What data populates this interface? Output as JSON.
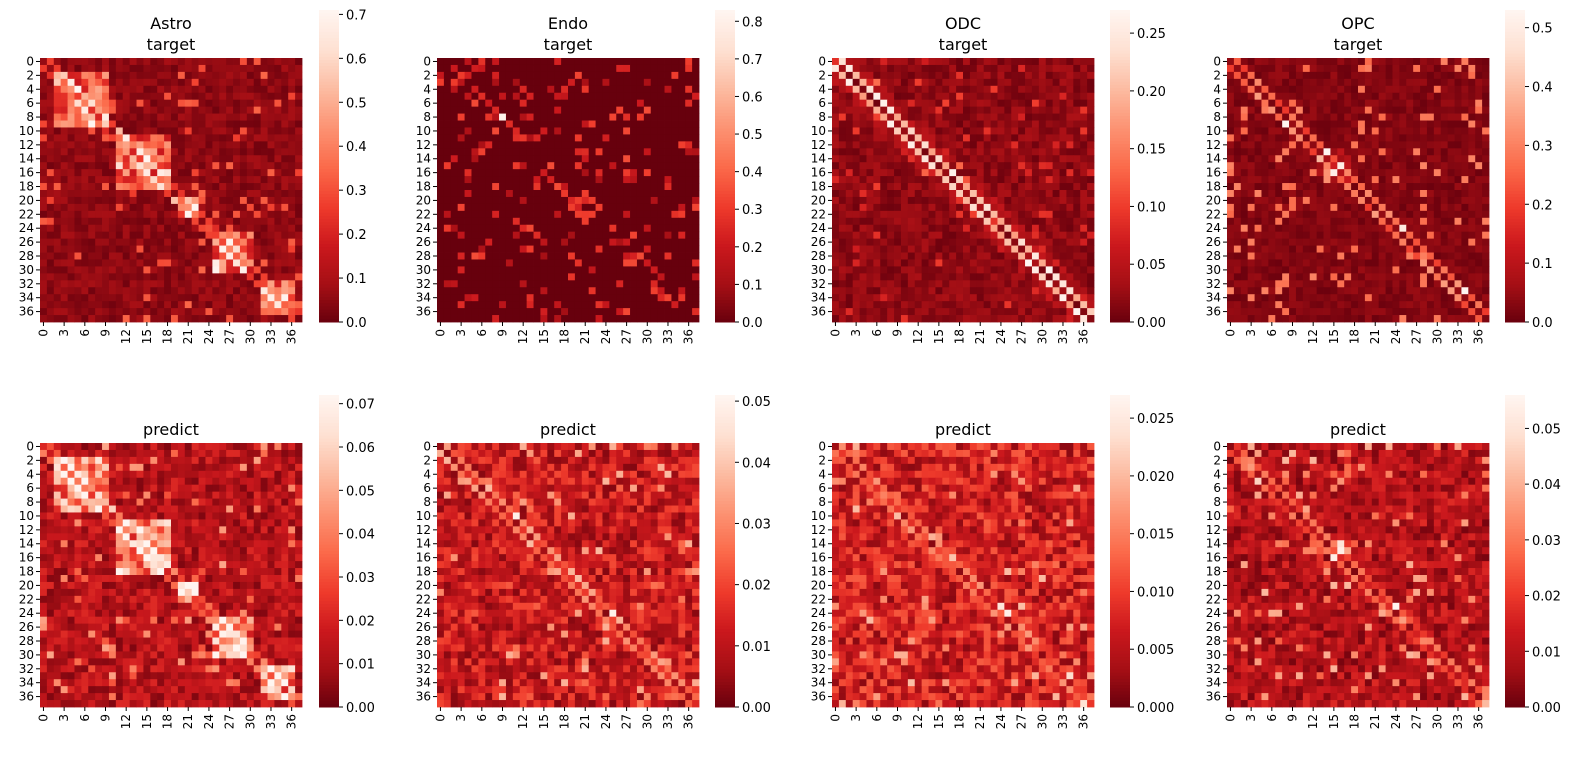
{
  "chart_data": [
    {
      "type": "heatmap",
      "title": [
        "Astro",
        "target"
      ],
      "matrix_size": 38,
      "tick_labels_y": [
        "0",
        "2",
        "4",
        "6",
        "8",
        "10",
        "12",
        "14",
        "16",
        "18",
        "20",
        "22",
        "24",
        "26",
        "28",
        "30",
        "32",
        "34",
        "36"
      ],
      "tick_labels_x": [
        "0",
        "3",
        "6",
        "9",
        "12",
        "15",
        "18",
        "21",
        "24",
        "27",
        "30",
        "33",
        "36"
      ],
      "colorbar": {
        "min": 0.0,
        "max": 0.71,
        "ticks": [
          "0.0",
          "0.1",
          "0.2",
          "0.3",
          "0.4",
          "0.5",
          "0.6",
          "0.7"
        ]
      },
      "cmap": "Reds_r",
      "diag_peak": 0.42,
      "background": 0.05,
      "pattern": "block-diagonal blocks 2-9, 11-18, 20-22, 25-30, 32-36"
    },
    {
      "type": "heatmap",
      "title": [
        "Endo",
        "target"
      ],
      "matrix_size": 38,
      "tick_labels_y": [
        "0",
        "2",
        "4",
        "6",
        "8",
        "10",
        "12",
        "14",
        "16",
        "18",
        "20",
        "22",
        "24",
        "26",
        "28",
        "30",
        "32",
        "34",
        "36"
      ],
      "tick_labels_x": [
        "0",
        "3",
        "6",
        "9",
        "12",
        "15",
        "18",
        "21",
        "24",
        "27",
        "30",
        "33",
        "36"
      ],
      "colorbar": {
        "min": 0.0,
        "max": 0.83,
        "ticks": [
          "0.0",
          "0.1",
          "0.2",
          "0.3",
          "0.4",
          "0.5",
          "0.6",
          "0.7",
          "0.8"
        ]
      },
      "cmap": "Reds_r",
      "diag_peak": 0.35,
      "background": 0.0,
      "pattern": "sparse, hotspot near (8,8), ring near (25,25)"
    },
    {
      "type": "heatmap",
      "title": [
        "ODC",
        "target"
      ],
      "matrix_size": 38,
      "tick_labels_y": [
        "0",
        "2",
        "4",
        "6",
        "8",
        "10",
        "12",
        "14",
        "16",
        "18",
        "20",
        "22",
        "24",
        "26",
        "28",
        "30",
        "32",
        "34",
        "36"
      ],
      "tick_labels_x": [
        "0",
        "3",
        "6",
        "9",
        "12",
        "15",
        "18",
        "21",
        "24",
        "27",
        "30",
        "33",
        "36"
      ],
      "colorbar": {
        "min": 0.0,
        "max": 0.27,
        "ticks": [
          "0.00",
          "0.05",
          "0.10",
          "0.15",
          "0.20",
          "0.25"
        ]
      },
      "cmap": "Reds_r",
      "diag_peak": 0.22,
      "background": 0.02,
      "pattern": "strong main diagonal"
    },
    {
      "type": "heatmap",
      "title": [
        "OPC",
        "target"
      ],
      "matrix_size": 38,
      "tick_labels_y": [
        "0",
        "2",
        "4",
        "6",
        "8",
        "10",
        "12",
        "14",
        "16",
        "18",
        "20",
        "22",
        "24",
        "26",
        "28",
        "30",
        "32",
        "34",
        "36"
      ],
      "tick_labels_x": [
        "0",
        "3",
        "6",
        "9",
        "12",
        "15",
        "18",
        "21",
        "24",
        "27",
        "30",
        "33",
        "36"
      ],
      "colorbar": {
        "min": 0.0,
        "max": 0.53,
        "ticks": [
          "0.0",
          "0.1",
          "0.2",
          "0.3",
          "0.4",
          "0.5"
        ]
      },
      "cmap": "Reds_r",
      "diag_peak": 0.32,
      "background": 0.03,
      "pattern": "diagonal with bright spot near (15,15)"
    },
    {
      "type": "heatmap",
      "title": [
        "predict"
      ],
      "matrix_size": 38,
      "tick_labels_y": [
        "0",
        "2",
        "4",
        "6",
        "8",
        "10",
        "12",
        "14",
        "16",
        "18",
        "20",
        "22",
        "24",
        "26",
        "28",
        "30",
        "32",
        "34",
        "36"
      ],
      "tick_labels_x": [
        "0",
        "3",
        "6",
        "9",
        "12",
        "15",
        "18",
        "21",
        "24",
        "27",
        "30",
        "33",
        "36"
      ],
      "colorbar": {
        "min": 0.0,
        "max": 0.072,
        "ticks": [
          "0.00",
          "0.01",
          "0.02",
          "0.03",
          "0.04",
          "0.05",
          "0.06",
          "0.07"
        ]
      },
      "cmap": "Reds_r",
      "diag_peak": 0.045,
      "background": 0.012,
      "pattern": "block-diagonal, noisy"
    },
    {
      "type": "heatmap",
      "title": [
        "predict"
      ],
      "matrix_size": 38,
      "tick_labels_y": [
        "0",
        "2",
        "4",
        "6",
        "8",
        "10",
        "12",
        "14",
        "16",
        "18",
        "20",
        "22",
        "24",
        "26",
        "28",
        "30",
        "32",
        "34",
        "36"
      ],
      "tick_labels_x": [
        "0",
        "3",
        "6",
        "9",
        "12",
        "15",
        "18",
        "21",
        "24",
        "27",
        "30",
        "33",
        "36"
      ],
      "colorbar": {
        "min": 0.0,
        "max": 0.051,
        "ticks": [
          "0.00",
          "0.01",
          "0.02",
          "0.03",
          "0.04",
          "0.05"
        ]
      },
      "cmap": "Reds_r",
      "diag_peak": 0.035,
      "background": 0.01,
      "pattern": "diagonal with bright spots near (10,10) and (25,25)"
    },
    {
      "type": "heatmap",
      "title": [
        "predict"
      ],
      "matrix_size": 38,
      "tick_labels_y": [
        "0",
        "2",
        "4",
        "6",
        "8",
        "10",
        "12",
        "14",
        "16",
        "18",
        "20",
        "22",
        "24",
        "26",
        "28",
        "30",
        "32",
        "34",
        "36"
      ],
      "tick_labels_x": [
        "0",
        "3",
        "6",
        "9",
        "12",
        "15",
        "18",
        "21",
        "24",
        "27",
        "30",
        "33",
        "36"
      ],
      "colorbar": {
        "min": 0.0,
        "max": 0.027,
        "ticks": [
          "0.000",
          "0.005",
          "0.010",
          "0.015",
          "0.020",
          "0.025"
        ]
      },
      "cmap": "Reds_r",
      "diag_peak": 0.016,
      "background": 0.006,
      "pattern": "diagonal, noisy"
    },
    {
      "type": "heatmap",
      "title": [
        "predict"
      ],
      "matrix_size": 38,
      "tick_labels_y": [
        "0",
        "2",
        "4",
        "6",
        "8",
        "10",
        "12",
        "14",
        "16",
        "18",
        "20",
        "22",
        "24",
        "26",
        "28",
        "30",
        "32",
        "34",
        "36"
      ],
      "tick_labels_x": [
        "0",
        "3",
        "6",
        "9",
        "12",
        "15",
        "18",
        "21",
        "24",
        "27",
        "30",
        "33",
        "36"
      ],
      "colorbar": {
        "min": 0.0,
        "max": 0.056,
        "ticks": [
          "0.00",
          "0.01",
          "0.02",
          "0.03",
          "0.04",
          "0.05"
        ]
      },
      "cmap": "Reds_r",
      "diag_peak": 0.03,
      "background": 0.01,
      "pattern": "diagonal with bright spot near (15,15)"
    }
  ]
}
